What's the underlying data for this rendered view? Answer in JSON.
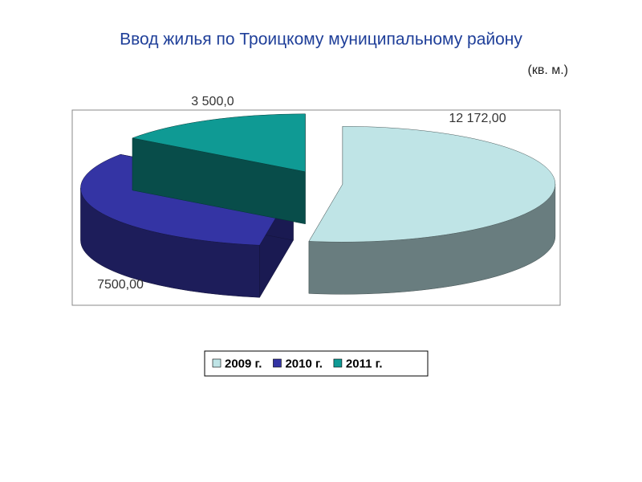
{
  "chart_data": {
    "type": "pie3d",
    "title": "Ввод жилья по Троицкому муниципальному району",
    "subtitle": "(кв. м.)",
    "categories": [
      "2009 г.",
      "2010 г.",
      "2011 г."
    ],
    "values": [
      12172,
      7500,
      3500
    ],
    "value_labels": [
      "12 172,00",
      "7500,00",
      "3 500,0"
    ],
    "colors": [
      "#bfe4e6",
      "#3434a4",
      "#0f9a94"
    ],
    "legend": "bottom"
  }
}
